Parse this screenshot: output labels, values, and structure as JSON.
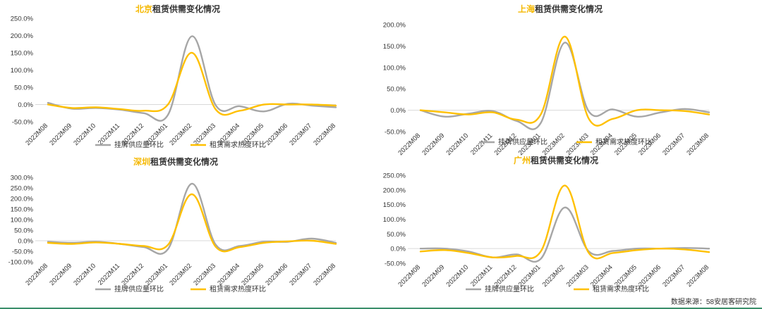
{
  "source": "数据来源：58安居客研究院",
  "colors": {
    "supply": "#A6A6A6",
    "demand": "#FFC000",
    "highlight": "#F5B800"
  },
  "chart_data": [
    {
      "type": "line",
      "title_highlight": "北京",
      "title_rest": "租赁供需变化情况",
      "categories": [
        "2022M08",
        "2022M09",
        "2022M10",
        "2022M11",
        "2022M12",
        "2023M01",
        "2023M02",
        "2023M03",
        "2023M04",
        "2023M05",
        "2023M06",
        "2023M07",
        "2023M08"
      ],
      "yticks": [
        "250.0%",
        "200.0%",
        "150.0%",
        "100.0%",
        "50.0%",
        "0.0%",
        "-50.0%"
      ],
      "ylim": [
        -50,
        250
      ],
      "legend_position": "bottom",
      "series": [
        {
          "name": "挂牌供应量环比",
          "values": [
            5,
            -12,
            -10,
            -15,
            -25,
            -30,
            198,
            -3,
            -5,
            -20,
            2,
            -3,
            -8
          ]
        },
        {
          "name": "租赁需求热度环比",
          "values": [
            0,
            -10,
            -8,
            -13,
            -18,
            0,
            150,
            -15,
            -18,
            0,
            0,
            0,
            -3
          ]
        }
      ]
    },
    {
      "type": "line",
      "title_highlight": "上海",
      "title_rest": "租赁供需变化情况",
      "categories": [
        "2022M08",
        "2022M09",
        "2022M10",
        "2022M11",
        "2022M12",
        "2023M01",
        "2023M02",
        "2023M03",
        "2023M04",
        "2023M05",
        "2023M06",
        "2023M07",
        "2023M08"
      ],
      "yticks": [
        "200.0%",
        "150.0%",
        "100.0%",
        "50.0%",
        "0.0%",
        "-50.0%"
      ],
      "ylim": [
        -50,
        200
      ],
      "legend_position": "bottom",
      "series": [
        {
          "name": "挂牌供应量环比",
          "values": [
            0,
            -15,
            -8,
            -2,
            -25,
            -30,
            158,
            -3,
            2,
            -15,
            -5,
            3,
            -5
          ]
        },
        {
          "name": "租赁需求热度环比",
          "values": [
            0,
            -5,
            -10,
            -5,
            -22,
            -10,
            172,
            -20,
            -20,
            0,
            0,
            -2,
            -10
          ]
        }
      ]
    },
    {
      "type": "line",
      "title_highlight": "深圳",
      "title_rest": "租赁供需变化情况",
      "categories": [
        "2022M08",
        "2022M09",
        "2022M10",
        "2022M11",
        "2022M12",
        "2023M01",
        "2023M02",
        "2023M03",
        "2023M04",
        "2023M05",
        "2023M06",
        "2023M07",
        "2023M08"
      ],
      "yticks": [
        "300.0%",
        "250.0%",
        "200.0%",
        "150.0%",
        "100.0%",
        "50.0%",
        "0.0%",
        "-50.0%",
        "-100.0%"
      ],
      "ylim": [
        -100,
        300
      ],
      "legend_position": "bottom",
      "series": [
        {
          "name": "挂牌供应量环比",
          "values": [
            -5,
            -10,
            -5,
            -15,
            -30,
            -40,
            270,
            -20,
            -25,
            -5,
            -5,
            10,
            -10
          ]
        },
        {
          "name": "租赁需求热度环比",
          "values": [
            -10,
            -15,
            -8,
            -15,
            -25,
            -20,
            220,
            -30,
            -30,
            -10,
            -3,
            0,
            -15
          ]
        }
      ]
    },
    {
      "type": "line",
      "title_highlight": "广州",
      "title_rest": "租赁供需变化情况",
      "categories": [
        "2022M08",
        "2022M09",
        "2022M10",
        "2022M11",
        "2022M12",
        "2023M01",
        "2023M02",
        "2023M03",
        "2023M04",
        "2023M05",
        "2023M06",
        "2023M07",
        "2023M08"
      ],
      "yticks": [
        "250.0%",
        "200.0%",
        "150.0%",
        "100.0%",
        "50.0%",
        "0.0%",
        "-50.0%"
      ],
      "ylim": [
        -50,
        250
      ],
      "legend_position": "bottom",
      "series": [
        {
          "name": "挂牌供应量环比",
          "values": [
            0,
            0,
            -10,
            -30,
            -20,
            -35,
            140,
            -10,
            -8,
            0,
            0,
            2,
            0
          ]
        },
        {
          "name": "租赁需求热度环比",
          "values": [
            -10,
            -5,
            -15,
            -30,
            -25,
            -10,
            215,
            -15,
            -15,
            -5,
            0,
            -3,
            -12
          ]
        }
      ]
    }
  ]
}
